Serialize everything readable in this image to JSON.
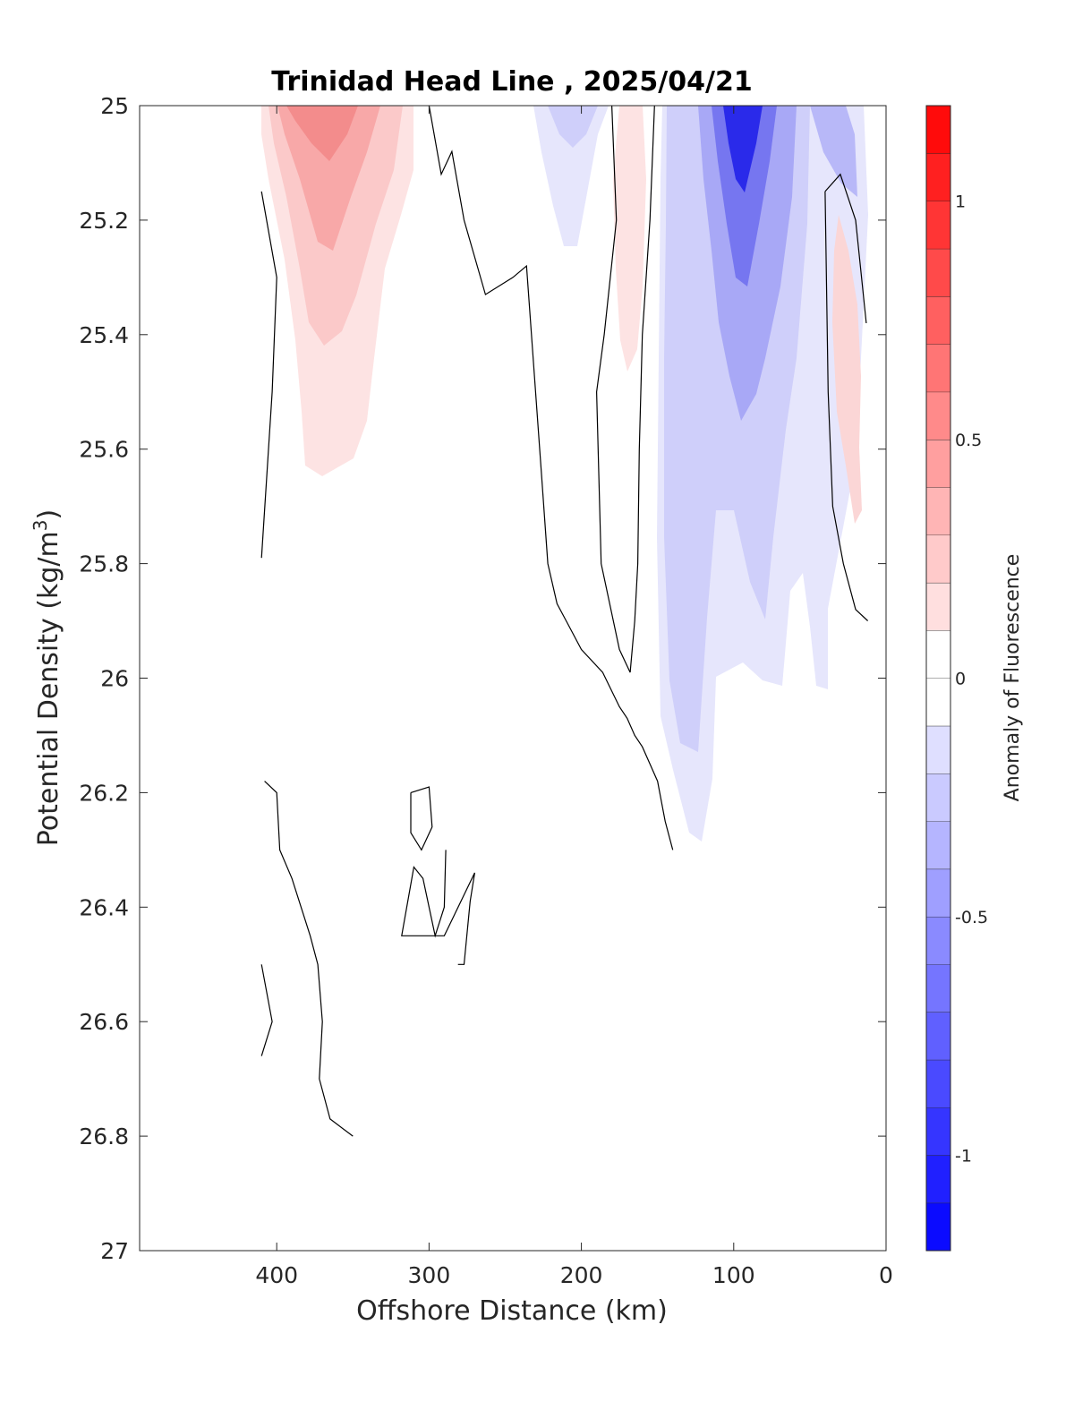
{
  "chart_data": {
    "type": "contour",
    "title": "Trinidad Head Line , 2025/04/21",
    "xlabel": "Offshore Distance (km)",
    "ylabel": "Potential Density (kg/m",
    "ylabel_sup": "3",
    "ylabel_end": ")",
    "xlim": [
      490,
      0
    ],
    "x_reversed": true,
    "ylim": [
      25,
      27
    ],
    "y_reversed": true,
    "x_ticks": [
      400,
      300,
      200,
      100,
      0
    ],
    "x_tick_labels": [
      "400",
      "300",
      "200",
      "100",
      "0"
    ],
    "y_ticks": [
      25,
      25.2,
      25.4,
      25.6,
      25.8,
      26,
      26.2,
      26.4,
      26.6,
      26.8,
      27
    ],
    "y_tick_labels": [
      "25",
      "25.2",
      "25.4",
      "25.6",
      "25.8",
      "26",
      "26.2",
      "26.4",
      "26.6",
      "26.8",
      "27"
    ],
    "colorbar": {
      "label": "Anomaly of Fluorescence",
      "range": [
        -1.2,
        1.2
      ],
      "step": 0.1,
      "ticks": [
        1,
        0.5,
        0,
        -0.5,
        -1
      ],
      "tick_labels": [
        "1",
        "0.5",
        "0",
        "-0.5",
        "-1"
      ],
      "colormap": "blue-white-red"
    },
    "anomaly_regions": [
      {
        "name": "offshore positive maximum",
        "x": 372,
        "y_top": 25.0,
        "y_bottom": 25.65,
        "peak": 0.5
      },
      {
        "name": "weak negative patch",
        "x": 205,
        "y_top": 25.0,
        "y_bottom": 25.25,
        "peak": -0.3
      },
      {
        "name": "weak positive band",
        "x": 168,
        "y_top": 25.0,
        "y_bottom": 25.47,
        "peak": 0.2
      },
      {
        "name": "nearshore negative minimum",
        "x": 100,
        "y_top": 25.0,
        "y_bottom": 26.29,
        "peak": -1.0
      },
      {
        "name": "coastal positive band",
        "x": 25,
        "y_top": 25.19,
        "y_bottom": 25.74,
        "peak": 0.2
      }
    ],
    "zero_contours": [
      {
        "name": "western contour",
        "points": [
          [
            410,
            25.15
          ],
          [
            400,
            25.3
          ],
          [
            403,
            25.5
          ],
          [
            410,
            25.79
          ]
        ]
      },
      {
        "name": "central contour",
        "points": [
          [
            300,
            25.0
          ],
          [
            292,
            25.12
          ],
          [
            285,
            25.08
          ],
          [
            277,
            25.2
          ],
          [
            263,
            25.33
          ],
          [
            245,
            25.3
          ],
          [
            236,
            25.28
          ],
          [
            226,
            25.65
          ],
          [
            222,
            25.8
          ],
          [
            216,
            25.87
          ],
          [
            210,
            25.9
          ],
          [
            200,
            25.95
          ],
          [
            186,
            25.99
          ],
          [
            175,
            26.05
          ],
          [
            170,
            26.07
          ],
          [
            165,
            26.1
          ],
          [
            160,
            26.12
          ],
          [
            155,
            26.15
          ],
          [
            150,
            26.18
          ],
          [
            145,
            26.25
          ],
          [
            140,
            26.3
          ]
        ]
      },
      {
        "name": "mid-depth contour",
        "points": [
          [
            408,
            26.18
          ],
          [
            400,
            26.2
          ],
          [
            398,
            26.3
          ],
          [
            390,
            26.35
          ],
          [
            384,
            26.4
          ],
          [
            378,
            26.45
          ],
          [
            373,
            26.5
          ],
          [
            370,
            26.6
          ],
          [
            372,
            26.7
          ],
          [
            365,
            26.77
          ],
          [
            350,
            26.8
          ]
        ]
      },
      {
        "name": "small closed contour",
        "points": [
          [
            312,
            26.2
          ],
          [
            300,
            26.19
          ],
          [
            298,
            26.26
          ],
          [
            305,
            26.3
          ],
          [
            312,
            26.27
          ],
          [
            312,
            26.2
          ]
        ]
      },
      {
        "name": "lower contour",
        "points": [
          [
            289,
            26.3
          ],
          [
            290,
            26.4
          ],
          [
            296,
            26.45
          ],
          [
            304,
            26.35
          ],
          [
            310,
            26.33
          ],
          [
            318,
            26.45
          ],
          [
            290,
            26.45
          ],
          [
            270,
            26.34
          ],
          [
            273,
            26.39
          ],
          [
            277,
            26.5
          ],
          [
            281,
            26.5
          ]
        ]
      },
      {
        "name": "deep contour",
        "points": [
          [
            410,
            26.5
          ],
          [
            403,
            26.6
          ],
          [
            410,
            26.66
          ]
        ]
      },
      {
        "name": "band west edge",
        "points": [
          [
            180,
            25.0
          ],
          [
            177,
            25.2
          ],
          [
            185,
            25.4
          ],
          [
            190,
            25.5
          ],
          [
            187,
            25.8
          ],
          [
            175,
            25.95
          ],
          [
            168,
            25.99
          ]
        ]
      },
      {
        "name": "band east edge",
        "points": [
          [
            152,
            25.0
          ],
          [
            155,
            25.2
          ],
          [
            160,
            25.4
          ],
          [
            162,
            25.6
          ],
          [
            163,
            25.8
          ],
          [
            165,
            25.9
          ],
          [
            168,
            25.99
          ]
        ]
      },
      {
        "name": "coastal contour",
        "points": [
          [
            40,
            25.15
          ],
          [
            30,
            25.12
          ],
          [
            20,
            25.2
          ],
          [
            13,
            25.38
          ]
        ]
      },
      {
        "name": "coastal lower contour",
        "points": [
          [
            40,
            25.15
          ],
          [
            38,
            25.5
          ],
          [
            35,
            25.7
          ],
          [
            28,
            25.8
          ],
          [
            20,
            25.88
          ],
          [
            12,
            25.9
          ]
        ]
      }
    ]
  }
}
